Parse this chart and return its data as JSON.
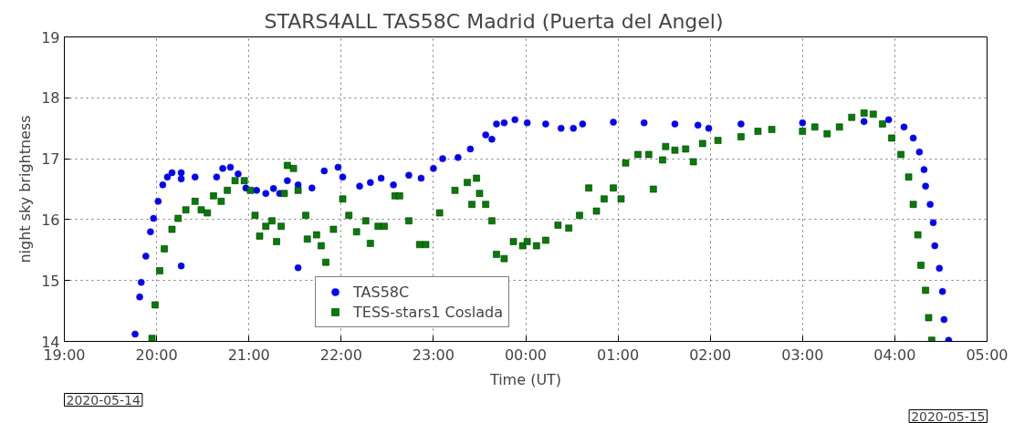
{
  "chart_data": {
    "type": "scatter",
    "title": "STARS4ALL      TAS58C      Madrid (Puerta del Angel)",
    "xlabel": "Time (UT)",
    "ylabel": "night sky brightness",
    "xlim": [
      "2020-05-14T19:00",
      "2020-05-15T05:00"
    ],
    "ylim": [
      14,
      19
    ],
    "xticks": [
      {
        "value": "2020-05-14T19:00",
        "label": "19:00"
      },
      {
        "value": "2020-05-14T20:00",
        "label": "20:00"
      },
      {
        "value": "2020-05-14T21:00",
        "label": "21:00"
      },
      {
        "value": "2020-05-14T22:00",
        "label": "22:00"
      },
      {
        "value": "2020-05-14T23:00",
        "label": "23:00"
      },
      {
        "value": "2020-05-15T00:00",
        "label": "00:00"
      },
      {
        "value": "2020-05-15T01:00",
        "label": "01:00"
      },
      {
        "value": "2020-05-15T02:00",
        "label": "02:00"
      },
      {
        "value": "2020-05-15T03:00",
        "label": "03:00"
      },
      {
        "value": "2020-05-15T04:00",
        "label": "04:00"
      },
      {
        "value": "2020-05-15T05:00",
        "label": "05:00"
      }
    ],
    "yticks": [
      14,
      15,
      16,
      17,
      18,
      19
    ],
    "grid": true,
    "legend": "bottom left",
    "annotations": [
      "2020-05-14",
      "2020-05-15"
    ],
    "series": [
      {
        "name": "TAS58C",
        "color": "#0000ff",
        "marker": "circle",
        "x": [
          "2020-05-14T19:46",
          "2020-05-14T19:49",
          "2020-05-14T19:50",
          "2020-05-14T19:53",
          "2020-05-14T19:56",
          "2020-05-14T19:58",
          "2020-05-14T20:01",
          "2020-05-14T20:04",
          "2020-05-14T20:07",
          "2020-05-14T20:10",
          "2020-05-14T20:16",
          "2020-05-14T20:16",
          "2020-05-14T20:16",
          "2020-05-14T20:25",
          "2020-05-14T20:39",
          "2020-05-14T20:43",
          "2020-05-14T20:48",
          "2020-05-14T20:53",
          "2020-05-14T20:58",
          "2020-05-14T21:05",
          "2020-05-14T21:11",
          "2020-05-14T21:16",
          "2020-05-14T21:20",
          "2020-05-14T21:25",
          "2020-05-14T21:32",
          "2020-05-14T21:32",
          "2020-05-14T21:41",
          "2020-05-14T21:49",
          "2020-05-14T21:58",
          "2020-05-14T22:01",
          "2020-05-14T22:12",
          "2020-05-14T22:19",
          "2020-05-14T22:26",
          "2020-05-14T22:34",
          "2020-05-14T22:44",
          "2020-05-14T22:52",
          "2020-05-14T23:00",
          "2020-05-14T23:06",
          "2020-05-14T23:16",
          "2020-05-14T23:24",
          "2020-05-14T23:34",
          "2020-05-14T23:38",
          "2020-05-14T23:41",
          "2020-05-14T23:46",
          "2020-05-14T23:53",
          "2020-05-15T00:01",
          "2020-05-15T00:13",
          "2020-05-15T00:23",
          "2020-05-15T00:31",
          "2020-05-15T00:37",
          "2020-05-15T00:57",
          "2020-05-15T01:17",
          "2020-05-15T01:37",
          "2020-05-15T01:52",
          "2020-05-15T01:59",
          "2020-05-15T02:20",
          "2020-05-15T03:00",
          "2020-05-15T03:40",
          "2020-05-15T03:56",
          "2020-05-15T04:06",
          "2020-05-15T04:12",
          "2020-05-15T04:16",
          "2020-05-15T04:19",
          "2020-05-15T04:20",
          "2020-05-15T04:23",
          "2020-05-15T04:25",
          "2020-05-15T04:26",
          "2020-05-15T04:29",
          "2020-05-15T04:31",
          "2020-05-15T04:32",
          "2020-05-15T04:35"
        ],
        "values": [
          14.12,
          14.73,
          14.97,
          15.4,
          15.8,
          16.02,
          16.3,
          16.57,
          16.7,
          16.77,
          16.77,
          15.24,
          16.67,
          16.7,
          16.7,
          16.84,
          16.86,
          16.75,
          16.52,
          16.48,
          16.43,
          16.51,
          16.43,
          16.64,
          16.57,
          15.21,
          16.52,
          16.8,
          16.86,
          16.7,
          16.55,
          16.61,
          16.68,
          16.57,
          16.73,
          16.68,
          16.84,
          17.0,
          17.02,
          17.16,
          17.39,
          17.32,
          17.57,
          17.59,
          17.64,
          17.59,
          17.57,
          17.5,
          17.5,
          17.57,
          17.6,
          17.59,
          17.57,
          17.55,
          17.5,
          17.57,
          17.59,
          17.61,
          17.64,
          17.52,
          17.34,
          17.11,
          16.82,
          16.55,
          16.25,
          15.95,
          15.57,
          15.2,
          14.82,
          14.36,
          14.02
        ]
      },
      {
        "name": "TESS-stars1 Coslada",
        "color": "#008000",
        "marker": "square",
        "x": [
          "2020-05-14T19:57",
          "2020-05-14T19:59",
          "2020-05-14T20:02",
          "2020-05-14T20:05",
          "2020-05-14T20:10",
          "2020-05-14T20:14",
          "2020-05-14T20:19",
          "2020-05-14T20:25",
          "2020-05-14T20:29",
          "2020-05-14T20:33",
          "2020-05-14T20:37",
          "2020-05-14T20:42",
          "2020-05-14T20:46",
          "2020-05-14T20:51",
          "2020-05-14T20:57",
          "2020-05-14T21:01",
          "2020-05-14T21:04",
          "2020-05-14T21:07",
          "2020-05-14T21:11",
          "2020-05-14T21:15",
          "2020-05-14T21:18",
          "2020-05-14T21:21",
          "2020-05-14T21:23",
          "2020-05-14T21:25",
          "2020-05-14T21:29",
          "2020-05-14T21:32",
          "2020-05-14T21:37",
          "2020-05-14T21:38",
          "2020-05-14T21:44",
          "2020-05-14T21:47",
          "2020-05-14T21:50",
          "2020-05-14T21:55",
          "2020-05-14T22:01",
          "2020-05-14T22:05",
          "2020-05-14T22:10",
          "2020-05-14T22:16",
          "2020-05-14T22:19",
          "2020-05-14T22:24",
          "2020-05-14T22:28",
          "2020-05-14T22:35",
          "2020-05-14T22:38",
          "2020-05-14T22:44",
          "2020-05-14T22:51",
          "2020-05-14T22:55",
          "2020-05-14T23:04",
          "2020-05-14T23:14",
          "2020-05-14T23:22",
          "2020-05-14T23:25",
          "2020-05-14T23:28",
          "2020-05-14T23:30",
          "2020-05-14T23:34",
          "2020-05-14T23:38",
          "2020-05-14T23:41",
          "2020-05-14T23:46",
          "2020-05-14T23:52",
          "2020-05-14T23:58",
          "2020-05-15T00:01",
          "2020-05-15T00:07",
          "2020-05-15T00:13",
          "2020-05-15T00:21",
          "2020-05-15T00:28",
          "2020-05-15T00:35",
          "2020-05-15T00:41",
          "2020-05-15T00:46",
          "2020-05-15T00:51",
          "2020-05-15T00:57",
          "2020-05-15T01:02",
          "2020-05-15T01:05",
          "2020-05-15T01:13",
          "2020-05-15T01:20",
          "2020-05-15T01:23",
          "2020-05-15T01:29",
          "2020-05-15T01:31",
          "2020-05-15T01:37",
          "2020-05-15T01:44",
          "2020-05-15T01:49",
          "2020-05-15T01:55",
          "2020-05-15T02:05",
          "2020-05-15T02:20",
          "2020-05-15T02:31",
          "2020-05-15T02:40",
          "2020-05-15T03:00",
          "2020-05-15T03:08",
          "2020-05-15T03:16",
          "2020-05-15T03:24",
          "2020-05-15T03:32",
          "2020-05-15T03:40",
          "2020-05-15T03:46",
          "2020-05-15T03:52",
          "2020-05-15T03:58",
          "2020-05-15T04:04",
          "2020-05-15T04:09",
          "2020-05-15T04:12",
          "2020-05-15T04:15",
          "2020-05-15T04:17",
          "2020-05-15T04:20",
          "2020-05-15T04:22",
          "2020-05-15T04:24"
        ],
        "values": [
          14.05,
          14.6,
          15.16,
          15.52,
          15.84,
          16.02,
          16.16,
          16.3,
          16.16,
          16.11,
          16.39,
          16.3,
          16.48,
          16.64,
          16.64,
          16.48,
          16.07,
          15.73,
          15.89,
          15.98,
          15.64,
          15.89,
          16.43,
          16.89,
          16.84,
          16.48,
          16.07,
          15.68,
          15.75,
          15.57,
          15.3,
          15.84,
          16.34,
          16.07,
          15.8,
          15.98,
          15.61,
          15.89,
          15.89,
          16.39,
          16.39,
          15.98,
          15.59,
          15.59,
          16.11,
          16.48,
          16.61,
          16.25,
          16.68,
          16.43,
          16.25,
          15.98,
          15.43,
          15.36,
          15.64,
          15.57,
          15.64,
          15.57,
          15.66,
          15.91,
          15.86,
          16.07,
          16.52,
          16.14,
          16.34,
          16.52,
          16.34,
          16.93,
          17.07,
          17.07,
          16.5,
          16.98,
          17.2,
          17.14,
          17.16,
          16.95,
          17.25,
          17.3,
          17.36,
          17.45,
          17.48,
          17.45,
          17.52,
          17.41,
          17.52,
          17.68,
          17.75,
          17.73,
          17.57,
          17.34,
          17.07,
          16.7,
          16.25,
          15.75,
          15.25,
          14.84,
          14.39,
          14.02
        ]
      }
    ]
  }
}
